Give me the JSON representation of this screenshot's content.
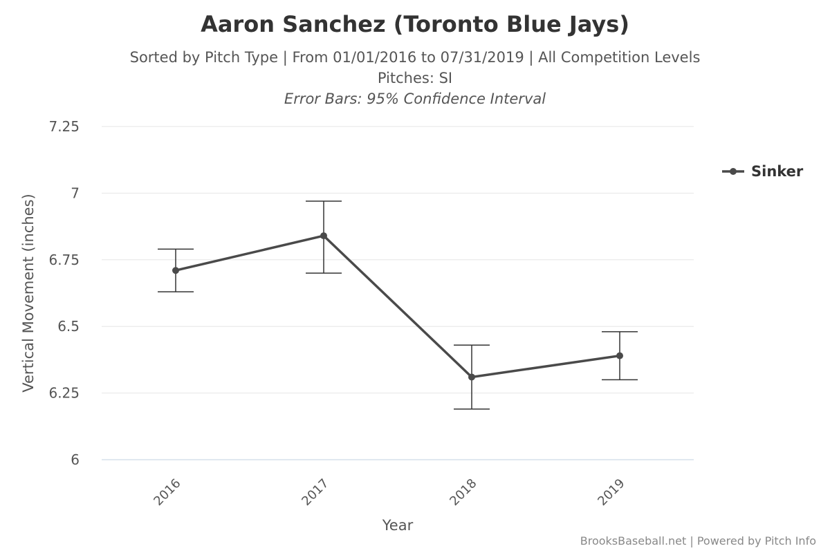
{
  "chart_data": {
    "type": "line",
    "title": "Aaron Sanchez (Toronto Blue Jays)",
    "subtitle_lines": [
      "Sorted by Pitch Type | From 01/01/2016 to 07/31/2019 | All Competition Levels",
      "Pitches: SI"
    ],
    "error_note": "Error Bars: 95% Confidence Interval",
    "xlabel": "Year",
    "ylabel": "Vertical Movement (inches)",
    "categories": [
      "2016",
      "2017",
      "2018",
      "2019"
    ],
    "ylim": [
      6,
      7.25
    ],
    "yticks": [
      6,
      6.25,
      6.5,
      6.75,
      7,
      7.25
    ],
    "ytick_labels": [
      "6",
      "6.25",
      "6.5",
      "6.75",
      "7",
      "7.25"
    ],
    "grid": true,
    "legend_position": "right",
    "series": [
      {
        "name": "Sinker",
        "color": "#4a4a4a",
        "values": [
          6.71,
          6.84,
          6.31,
          6.39
        ],
        "error_low": [
          6.63,
          6.7,
          6.19,
          6.3
        ],
        "error_high": [
          6.79,
          6.97,
          6.43,
          6.48
        ]
      }
    ]
  },
  "credits": "BrooksBaseball.net | Powered by Pitch Info"
}
